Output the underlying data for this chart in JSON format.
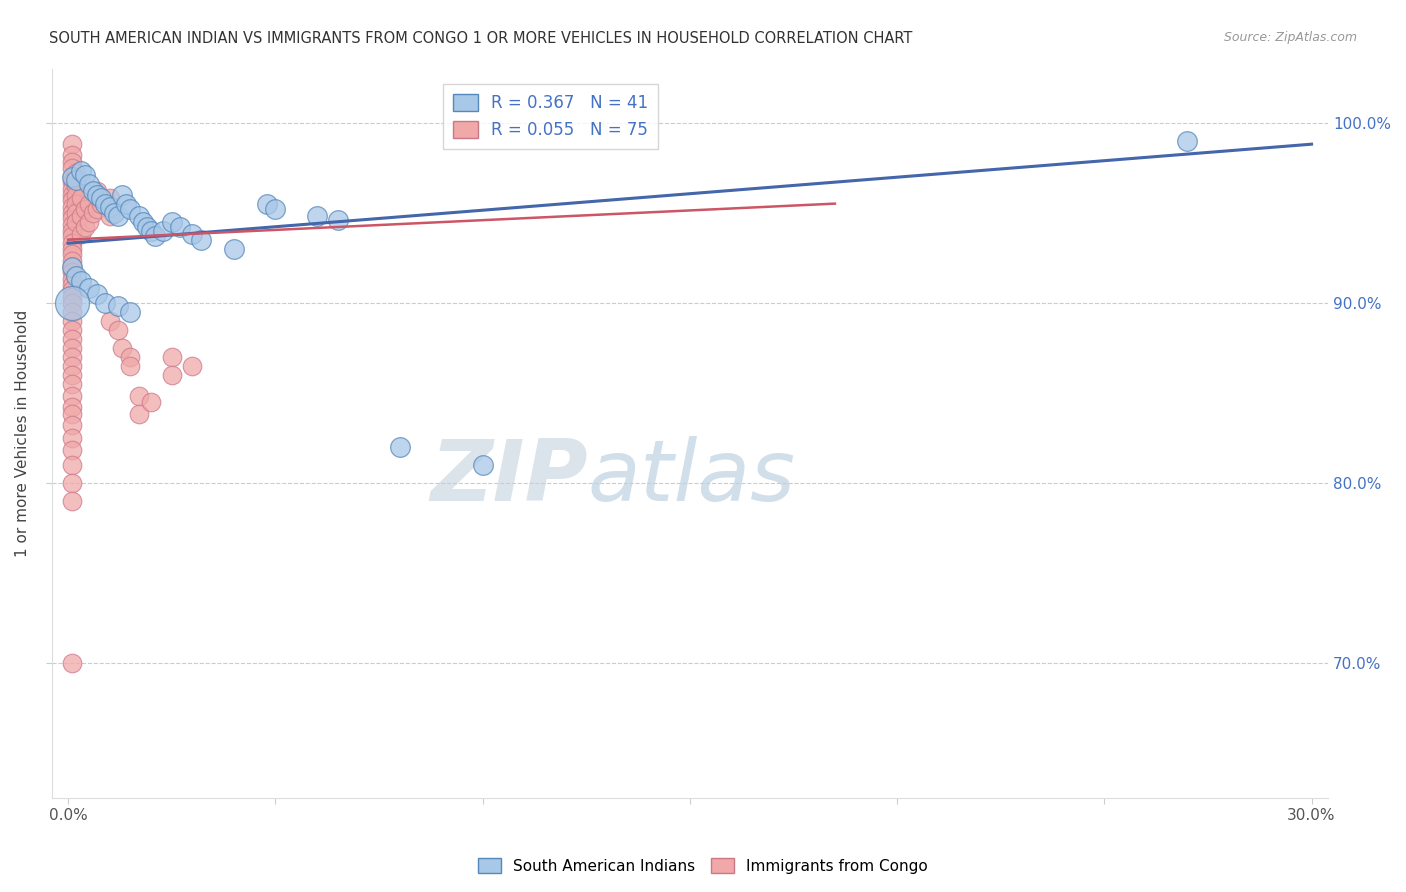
{
  "title": "SOUTH AMERICAN INDIAN VS IMMIGRANTS FROM CONGO 1 OR MORE VEHICLES IN HOUSEHOLD CORRELATION CHART",
  "source": "Source: ZipAtlas.com",
  "ylabel": "1 or more Vehicles in Household",
  "ytick_labels": [
    "70.0%",
    "80.0%",
    "90.0%",
    "100.0%"
  ],
  "ytick_values": [
    0.7,
    0.8,
    0.9,
    1.0
  ],
  "xlim": [
    0.0,
    0.3
  ],
  "ylim": [
    0.625,
    1.03
  ],
  "watermark_zip": "ZIP",
  "watermark_atlas": "atlas",
  "legend_blue_r": "R = 0.367",
  "legend_blue_n": "N = 41",
  "legend_pink_r": "R = 0.055",
  "legend_pink_n": "N = 75",
  "legend_label_blue": "South American Indians",
  "legend_label_pink": "Immigrants from Congo",
  "blue_fill": "#a8c8e8",
  "blue_edge": "#5588bb",
  "pink_fill": "#f0a8a8",
  "pink_edge": "#cc7788",
  "blue_line_color": "#4466aa",
  "pink_line_color": "#cc5566",
  "grid_color": "#cccccc",
  "blue_scatter": [
    [
      0.001,
      0.97
    ],
    [
      0.002,
      0.968
    ],
    [
      0.003,
      0.973
    ],
    [
      0.004,
      0.971
    ],
    [
      0.005,
      0.966
    ],
    [
      0.006,
      0.962
    ],
    [
      0.007,
      0.96
    ],
    [
      0.008,
      0.958
    ],
    [
      0.009,
      0.955
    ],
    [
      0.01,
      0.953
    ],
    [
      0.011,
      0.95
    ],
    [
      0.012,
      0.948
    ],
    [
      0.013,
      0.96
    ],
    [
      0.014,
      0.955
    ],
    [
      0.015,
      0.952
    ],
    [
      0.017,
      0.948
    ],
    [
      0.018,
      0.945
    ],
    [
      0.019,
      0.942
    ],
    [
      0.02,
      0.94
    ],
    [
      0.021,
      0.937
    ],
    [
      0.023,
      0.94
    ],
    [
      0.025,
      0.945
    ],
    [
      0.027,
      0.942
    ],
    [
      0.03,
      0.938
    ],
    [
      0.032,
      0.935
    ],
    [
      0.04,
      0.93
    ],
    [
      0.048,
      0.955
    ],
    [
      0.05,
      0.952
    ],
    [
      0.06,
      0.948
    ],
    [
      0.065,
      0.946
    ],
    [
      0.001,
      0.92
    ],
    [
      0.002,
      0.915
    ],
    [
      0.003,
      0.912
    ],
    [
      0.005,
      0.908
    ],
    [
      0.007,
      0.905
    ],
    [
      0.009,
      0.9
    ],
    [
      0.012,
      0.898
    ],
    [
      0.015,
      0.895
    ],
    [
      0.08,
      0.82
    ],
    [
      0.1,
      0.81
    ],
    [
      0.27,
      0.99
    ]
  ],
  "pink_scatter": [
    [
      0.001,
      0.988
    ],
    [
      0.001,
      0.982
    ],
    [
      0.001,
      0.978
    ],
    [
      0.001,
      0.975
    ],
    [
      0.001,
      0.97
    ],
    [
      0.001,
      0.967
    ],
    [
      0.001,
      0.963
    ],
    [
      0.001,
      0.96
    ],
    [
      0.001,
      0.957
    ],
    [
      0.001,
      0.953
    ],
    [
      0.001,
      0.95
    ],
    [
      0.001,
      0.947
    ],
    [
      0.001,
      0.943
    ],
    [
      0.001,
      0.94
    ],
    [
      0.001,
      0.937
    ],
    [
      0.001,
      0.933
    ],
    [
      0.001,
      0.93
    ],
    [
      0.001,
      0.927
    ],
    [
      0.001,
      0.923
    ],
    [
      0.001,
      0.92
    ],
    [
      0.001,
      0.917
    ],
    [
      0.001,
      0.913
    ],
    [
      0.001,
      0.91
    ],
    [
      0.001,
      0.907
    ],
    [
      0.001,
      0.903
    ],
    [
      0.001,
      0.9
    ],
    [
      0.001,
      0.895
    ],
    [
      0.001,
      0.89
    ],
    [
      0.001,
      0.885
    ],
    [
      0.001,
      0.88
    ],
    [
      0.001,
      0.875
    ],
    [
      0.001,
      0.87
    ],
    [
      0.001,
      0.865
    ],
    [
      0.001,
      0.86
    ],
    [
      0.001,
      0.855
    ],
    [
      0.001,
      0.848
    ],
    [
      0.001,
      0.842
    ],
    [
      0.001,
      0.838
    ],
    [
      0.001,
      0.832
    ],
    [
      0.001,
      0.825
    ],
    [
      0.001,
      0.818
    ],
    [
      0.001,
      0.81
    ],
    [
      0.001,
      0.8
    ],
    [
      0.001,
      0.79
    ],
    [
      0.002,
      0.972
    ],
    [
      0.002,
      0.965
    ],
    [
      0.002,
      0.96
    ],
    [
      0.002,
      0.955
    ],
    [
      0.002,
      0.95
    ],
    [
      0.002,
      0.945
    ],
    [
      0.003,
      0.958
    ],
    [
      0.003,
      0.948
    ],
    [
      0.003,
      0.938
    ],
    [
      0.004,
      0.952
    ],
    [
      0.004,
      0.942
    ],
    [
      0.005,
      0.955
    ],
    [
      0.005,
      0.945
    ],
    [
      0.006,
      0.95
    ],
    [
      0.007,
      0.962
    ],
    [
      0.007,
      0.952
    ],
    [
      0.008,
      0.955
    ],
    [
      0.01,
      0.958
    ],
    [
      0.01,
      0.948
    ],
    [
      0.01,
      0.89
    ],
    [
      0.012,
      0.885
    ],
    [
      0.013,
      0.875
    ],
    [
      0.015,
      0.87
    ],
    [
      0.015,
      0.865
    ],
    [
      0.017,
      0.848
    ],
    [
      0.017,
      0.838
    ],
    [
      0.02,
      0.845
    ],
    [
      0.025,
      0.87
    ],
    [
      0.025,
      0.86
    ],
    [
      0.03,
      0.865
    ],
    [
      0.001,
      0.7
    ]
  ],
  "blue_large_point": [
    0.001,
    0.9
  ],
  "blue_large_size": 600
}
